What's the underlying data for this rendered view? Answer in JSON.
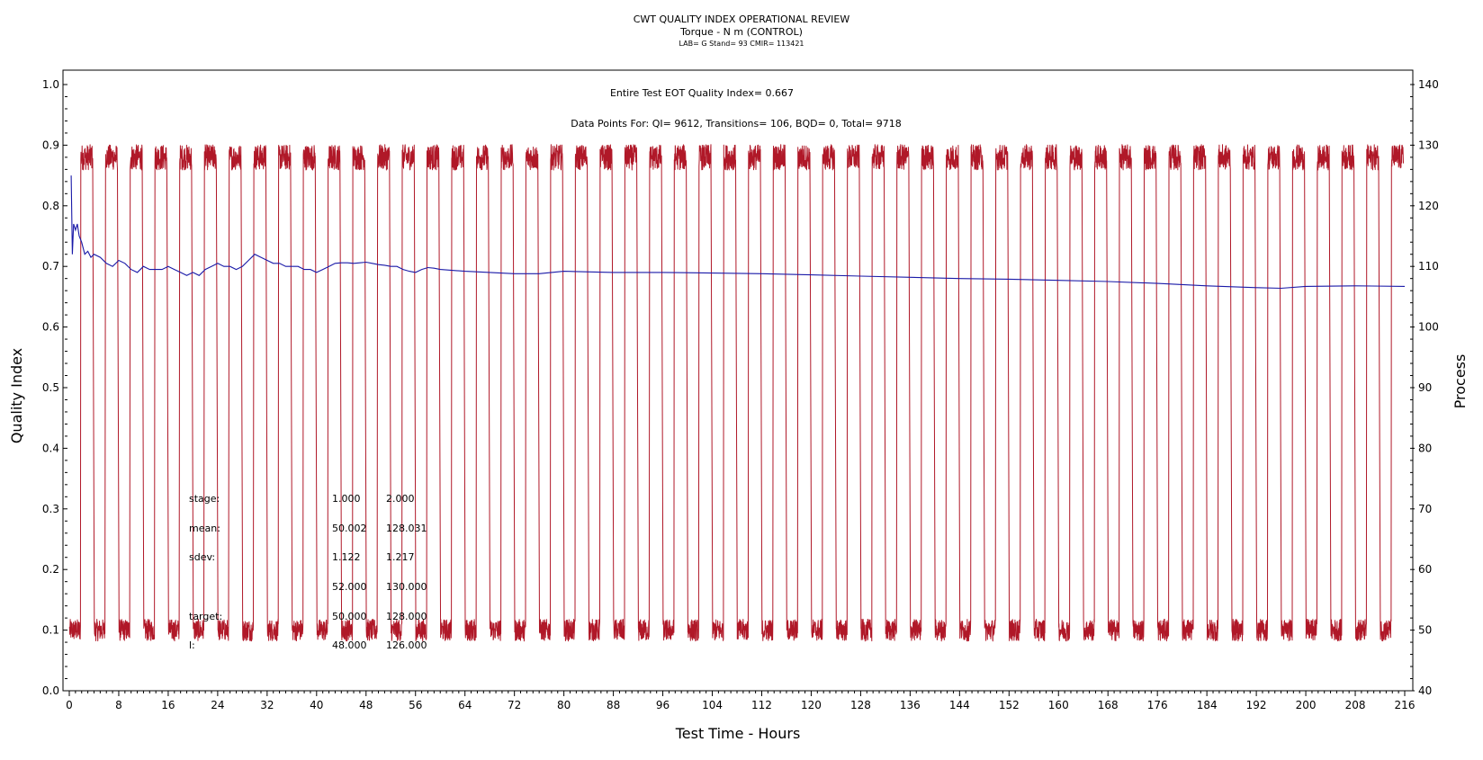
{
  "chart_data": {
    "type": "line",
    "title": "CWT QUALITY INDEX OPERATIONAL REVIEW",
    "subtitle": "Torque - N m (CONTROL)",
    "subtitle2": "LAB= G Stand= 93 CMIR= 113421",
    "annotation_qi": "Entire Test EOT Quality Index=   0.667",
    "annotation_points": "Data Points For: QI=   9612, Transitions=    106, BQD=      0, Total=   9718",
    "xlabel": "Test Time - Hours",
    "ylabel": "Quality Index",
    "y2label": "Process",
    "xlim": [
      0,
      216
    ],
    "ylim": [
      0.0,
      1.0
    ],
    "y2lim": [
      40,
      140
    ],
    "x_ticks": [
      "0",
      "8",
      "16",
      "24",
      "32",
      "40",
      "48",
      "56",
      "64",
      "72",
      "80",
      "88",
      "96",
      "104",
      "112",
      "120",
      "128",
      "136",
      "144",
      "152",
      "160",
      "168",
      "176",
      "184",
      "192",
      "200",
      "208",
      "216"
    ],
    "y_ticks": [
      "0.0",
      "0.1",
      "0.2",
      "0.3",
      "0.4",
      "0.5",
      "0.6",
      "0.7",
      "0.8",
      "0.9",
      "1.0"
    ],
    "y2_ticks": [
      "40",
      "50",
      "60",
      "70",
      "80",
      "90",
      "100",
      "110",
      "120",
      "130",
      "140"
    ],
    "grid": false,
    "series": [
      {
        "name": "Quality Index",
        "axis": "left",
        "color": "#1a1aa8",
        "x": [
          0.3,
          0.5,
          0.7,
          1.0,
          1.3,
          1.6,
          2,
          2.5,
          3,
          3.5,
          4,
          5,
          6,
          7,
          8,
          9,
          10,
          11,
          12,
          13,
          14,
          15,
          16,
          17,
          18,
          19,
          20,
          21,
          22,
          23,
          24,
          25,
          26,
          27,
          28,
          29,
          30,
          31,
          32,
          33,
          34,
          35,
          36,
          37,
          38,
          39,
          40,
          41,
          42,
          43,
          44,
          45,
          46,
          47,
          48,
          49,
          50,
          51,
          52,
          53,
          54,
          55,
          56,
          57,
          58,
          59,
          60,
          64,
          68,
          72,
          76,
          80,
          88,
          96,
          104,
          112,
          120,
          128,
          136,
          144,
          152,
          160,
          168,
          176,
          184,
          192,
          196,
          200,
          208,
          216
        ],
        "values": [
          0.85,
          0.72,
          0.77,
          0.76,
          0.77,
          0.75,
          0.74,
          0.72,
          0.725,
          0.715,
          0.72,
          0.715,
          0.705,
          0.7,
          0.71,
          0.705,
          0.695,
          0.69,
          0.7,
          0.695,
          0.695,
          0.695,
          0.7,
          0.695,
          0.69,
          0.685,
          0.69,
          0.685,
          0.695,
          0.7,
          0.705,
          0.7,
          0.7,
          0.695,
          0.7,
          0.71,
          0.72,
          0.715,
          0.71,
          0.705,
          0.705,
          0.7,
          0.7,
          0.7,
          0.695,
          0.695,
          0.69,
          0.695,
          0.7,
          0.705,
          0.706,
          0.706,
          0.705,
          0.706,
          0.707,
          0.705,
          0.703,
          0.702,
          0.7,
          0.7,
          0.695,
          0.692,
          0.69,
          0.695,
          0.698,
          0.697,
          0.695,
          0.692,
          0.69,
          0.688,
          0.688,
          0.692,
          0.69,
          0.69,
          0.689,
          0.688,
          0.686,
          0.684,
          0.682,
          0.68,
          0.679,
          0.677,
          0.675,
          0.672,
          0.668,
          0.665,
          0.664,
          0.667,
          0.668,
          0.667
        ]
      },
      {
        "name": "Process",
        "axis": "right",
        "color": "#b01828",
        "x": [],
        "values": [],
        "pattern": {
          "low": 50,
          "high": 128,
          "cycles": 54,
          "period_hours": 4,
          "start_hours": 0,
          "end_hours": 216
        }
      }
    ],
    "stats_table": {
      "rows": [
        {
          "label": "stage:",
          "v1": "1.000",
          "v2": "2.000"
        },
        {
          "label": "mean:",
          "v1": "50.002",
          "v2": "128.031"
        },
        {
          "label": "sdev:",
          "v1": "1.122",
          "v2": "1.217"
        },
        {
          "label": "",
          "v1": "52.000",
          "v2": "130.000"
        },
        {
          "label": "target:",
          "v1": "50.000",
          "v2": "128.000"
        },
        {
          "label": "l:",
          "v1": "48.000",
          "v2": "126.000"
        }
      ]
    }
  }
}
